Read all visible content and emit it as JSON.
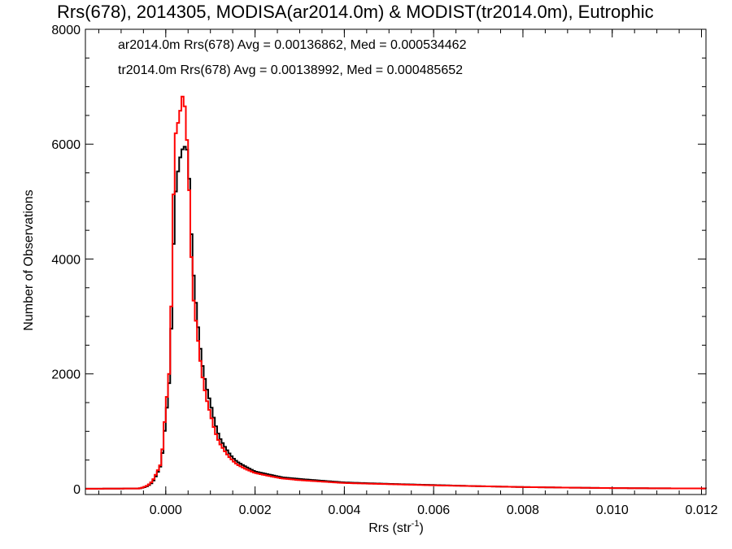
{
  "chart_data": {
    "type": "line",
    "title": "Rrs(678), 2014305, MODISA(ar2014.0m) & MODIST(tr2014.0m), Eutrophic",
    "xlabel": "Rrs (str",
    "xlabel_sup": "-1",
    "xlabel_close": ")",
    "ylabel": "Number of Observations",
    "xlim": [
      -0.0018,
      0.0121
    ],
    "ylim": [
      -100,
      8000
    ],
    "xticks": [
      0.0,
      0.002,
      0.004,
      0.006,
      0.008,
      0.01,
      0.012
    ],
    "xtick_labels": [
      "0.000",
      "0.002",
      "0.004",
      "0.006",
      "0.008",
      "0.010",
      "0.012"
    ],
    "yticks": [
      0,
      2000,
      4000,
      6000,
      8000
    ],
    "ytick_labels": [
      "0",
      "2000",
      "4000",
      "6000",
      "8000"
    ],
    "grid": false,
    "legend_position": "top-left",
    "series": [
      {
        "name": "ar2014.0m Rrs(678) Avg = 0.00136862, Med = 0.000534462",
        "color": "#000000",
        "x": [
          -0.0018,
          -0.0006,
          -0.0005,
          -0.0004,
          -0.0003,
          -0.0002,
          -0.0001,
          0.0,
          0.0001,
          0.0002,
          0.0003,
          0.0004,
          0.0005,
          0.0006,
          0.0007,
          0.0008,
          0.0009,
          0.001,
          0.0011,
          0.0012,
          0.0013,
          0.0014,
          0.0015,
          0.0016,
          0.0018,
          0.002,
          0.0023,
          0.0026,
          0.003,
          0.0035,
          0.004,
          0.005,
          0.006,
          0.007,
          0.008,
          0.009,
          0.01,
          0.011,
          0.0121
        ],
        "values": [
          0,
          5,
          20,
          50,
          110,
          250,
          430,
          1200,
          2050,
          5000,
          5700,
          5980,
          5880,
          3950,
          3000,
          2250,
          1800,
          1500,
          1150,
          900,
          760,
          640,
          540,
          470,
          380,
          300,
          250,
          200,
          170,
          140,
          110,
          85,
          65,
          45,
          30,
          20,
          12,
          8,
          5
        ]
      },
      {
        "name": "tr2014.0m Rrs(678) Avg = 0.00138992, Med = 0.000485652",
        "color": "#ff0000",
        "x": [
          -0.0018,
          -0.0006,
          -0.0005,
          -0.0004,
          -0.0003,
          -0.0002,
          -0.0001,
          0.0,
          0.0001,
          0.0002,
          0.0003,
          0.0004,
          0.0005,
          0.0006,
          0.0007,
          0.0008,
          0.0009,
          0.001,
          0.0011,
          0.0012,
          0.0013,
          0.0014,
          0.0015,
          0.0016,
          0.0018,
          0.002,
          0.0023,
          0.0026,
          0.003,
          0.0035,
          0.004,
          0.005,
          0.006,
          0.007,
          0.008,
          0.009,
          0.01,
          0.011,
          0.0121
        ],
        "values": [
          0,
          5,
          25,
          60,
          130,
          280,
          450,
          1400,
          2200,
          6100,
          6460,
          6950,
          5780,
          3450,
          2750,
          2050,
          1600,
          1300,
          1000,
          800,
          680,
          570,
          490,
          420,
          340,
          275,
          225,
          180,
          150,
          125,
          100,
          80,
          60,
          45,
          30,
          20,
          12,
          8,
          5
        ]
      }
    ]
  }
}
